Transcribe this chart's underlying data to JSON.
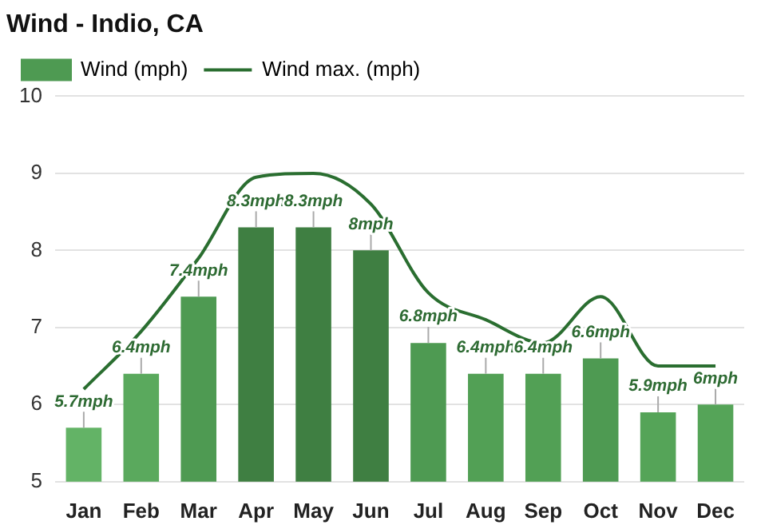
{
  "chart_data": {
    "type": "bar",
    "title": "Wind - Indio, CA",
    "categories": [
      "Jan",
      "Feb",
      "Mar",
      "Apr",
      "May",
      "Jun",
      "Jul",
      "Aug",
      "Sep",
      "Oct",
      "Nov",
      "Dec"
    ],
    "series": [
      {
        "name": "Wind (mph)",
        "color": "#4e9a52",
        "colors": [
          "#63b366",
          "#5aa95d",
          "#4e9a52",
          "#3f7f42",
          "#3f7f42",
          "#3f7f42",
          "#4e9a52",
          "#52a055",
          "#52a055",
          "#4e9a52",
          "#55a458",
          "#55a458"
        ],
        "values": [
          5.7,
          6.4,
          7.4,
          8.3,
          8.3,
          8,
          6.8,
          6.4,
          6.4,
          6.6,
          5.9,
          6
        ],
        "value_labels": [
          "5.7mph",
          "6.4mph",
          "7.4mph",
          "8.3mph",
          "8.3mph",
          "8mph",
          "6.8mph",
          "6.4mph",
          "6.4mph",
          "6.6mph",
          "5.9mph",
          "6mph"
        ]
      },
      {
        "name": "Wind max. (mph)",
        "type": "line",
        "color": "#2a6e30",
        "values": [
          6.2,
          6.95,
          7.9,
          8.95,
          9.0,
          8.6,
          7.45,
          7.1,
          6.8,
          7.4,
          6.5,
          6.5
        ]
      }
    ],
    "ylim": [
      5,
      10
    ],
    "yticks": [
      5,
      6,
      7,
      8,
      9,
      10
    ],
    "grid": "y",
    "legend": "top left",
    "marker": "none"
  }
}
